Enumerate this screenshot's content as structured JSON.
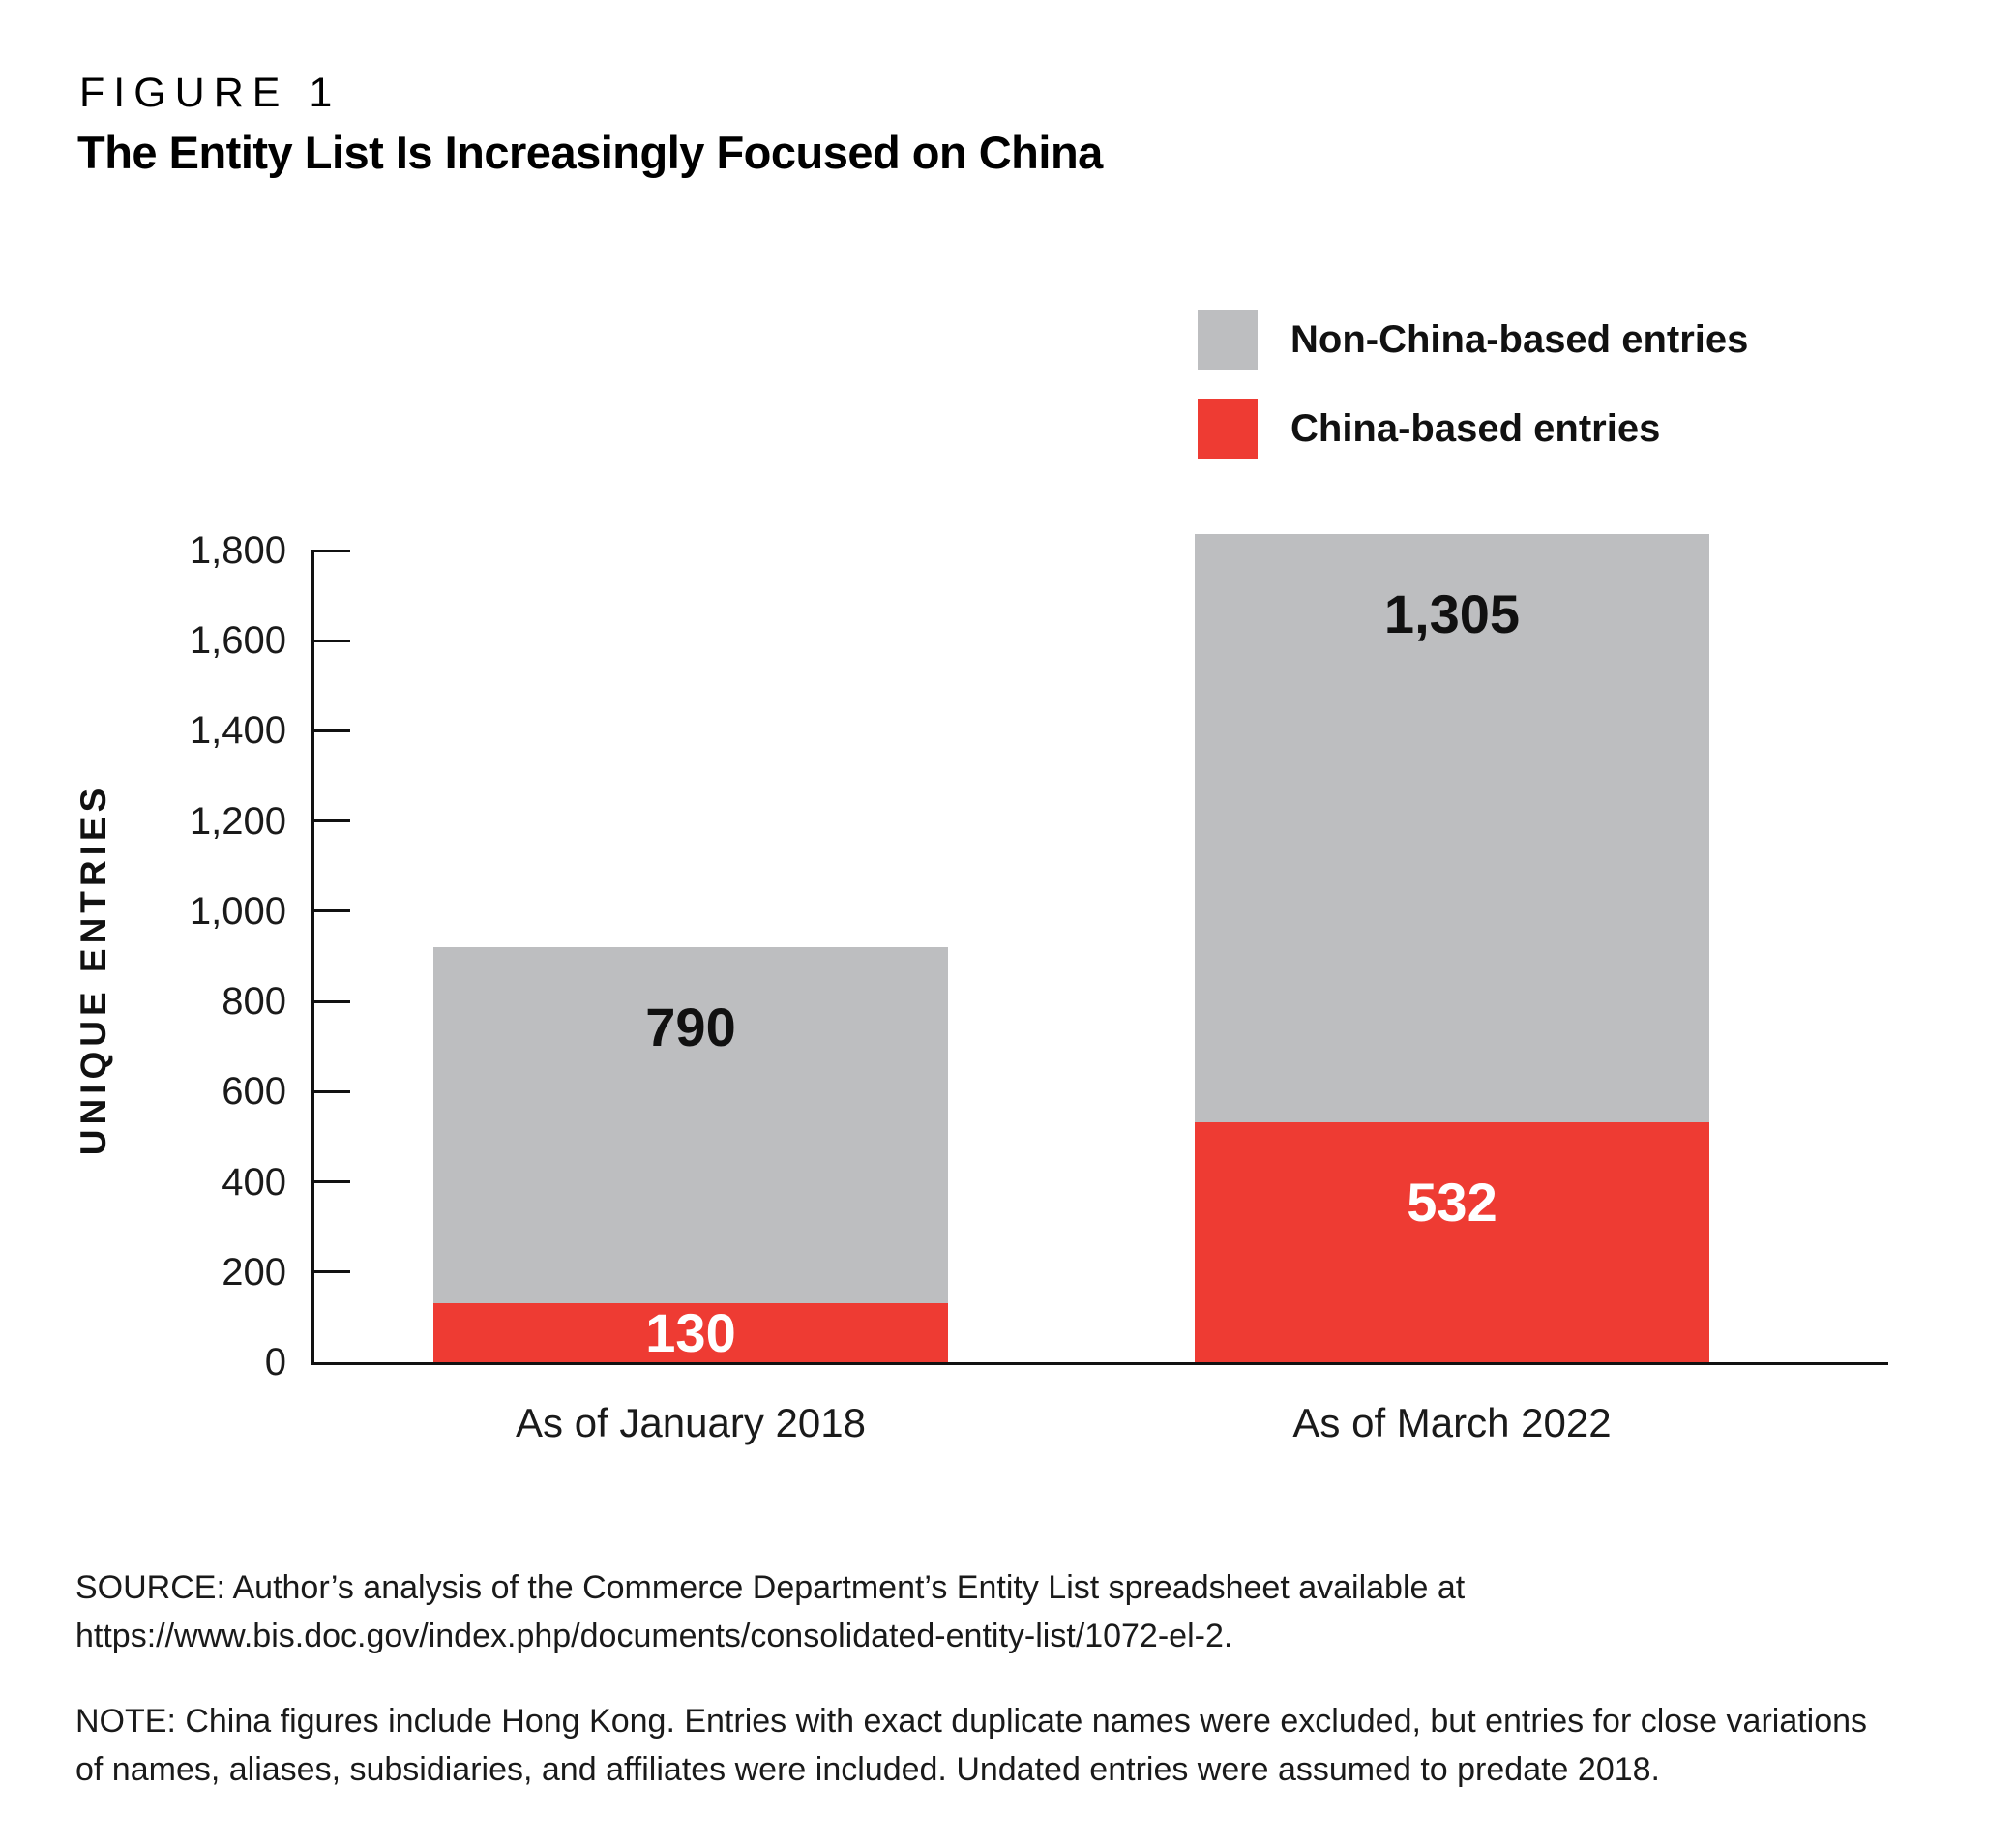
{
  "figure": {
    "label": "FIGURE 1",
    "title": "The Entity List Is Increasingly Focused on China"
  },
  "legend": [
    {
      "label": "Non-China-based entries",
      "color": "#bdbec0"
    },
    {
      "label": "China-based entries",
      "color": "#ee3b33"
    }
  ],
  "chart_data": {
    "type": "bar",
    "stacked": true,
    "title": "The Entity List Is Increasingly Focused on China",
    "ylabel": "UNIQUE ENTRIES",
    "xlabel": "",
    "categories": [
      "As of January 2018",
      "As of March 2022"
    ],
    "series": [
      {
        "name": "China-based entries",
        "color": "#ee3b33",
        "values": [
          130,
          532
        ],
        "labels": [
          "130",
          "532"
        ],
        "label_color": "#ffffff"
      },
      {
        "name": "Non-China-based entries",
        "color": "#bdbec0",
        "values": [
          790,
          1305
        ],
        "labels": [
          "790",
          "1,305"
        ],
        "label_color": "#111111"
      }
    ],
    "totals": [
      920,
      1837
    ],
    "y_axis": {
      "min": 0,
      "max": 1800,
      "step": 200,
      "tick_labels": [
        "1,800",
        "1,600",
        "1,400",
        "1,200",
        "1,000",
        "800",
        "600",
        "400",
        "200",
        "0"
      ]
    },
    "grid": false,
    "legend_position": "top-right"
  },
  "source": {
    "lines": [
      "SOURCE: Author’s analysis of the Commerce Department’s Entity List spreadsheet available at",
      "https://www.bis.doc.gov/index.php/documents/consolidated-entity-list/1072-el-2."
    ]
  },
  "note": {
    "lines": [
      "NOTE: China figures include Hong Kong. Entries with exact duplicate names were excluded, but entries for close variations",
      "of names, aliases, subsidiaries, and affiliates were included. Undated entries were assumed to predate 2018."
    ]
  }
}
